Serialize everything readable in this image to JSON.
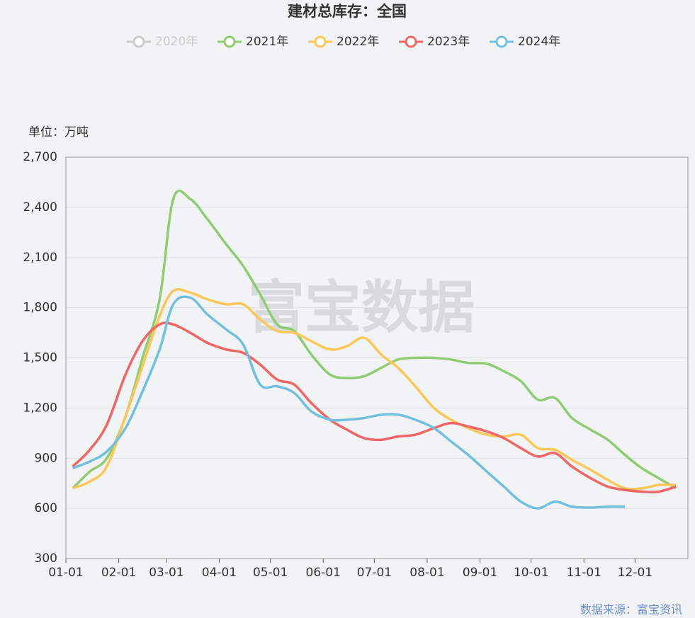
{
  "chart_data": {
    "type": "line",
    "title": "建材总库存：全国",
    "y_unit_label": "单位：万吨",
    "source": "数据来源：富宝资讯",
    "watermark": "富宝数据",
    "x": [
      "01-05",
      "01-15",
      "01-25",
      "02-05",
      "02-15",
      "02-25",
      "03-05",
      "03-15",
      "03-25",
      "04-05",
      "04-15",
      "04-25",
      "05-05",
      "05-15",
      "05-25",
      "06-05",
      "06-15",
      "06-25",
      "07-05",
      "07-15",
      "07-25",
      "08-05",
      "08-15",
      "08-25",
      "09-05",
      "09-15",
      "09-25",
      "10-05",
      "10-15",
      "10-25",
      "11-05",
      "11-15",
      "11-25",
      "12-05",
      "12-15",
      "12-25"
    ],
    "xlim": [
      "01-01",
      "12-31"
    ],
    "xticks": [
      "01-01",
      "02-01",
      "03-01",
      "04-01",
      "05-01",
      "06-01",
      "07-01",
      "08-01",
      "09-01",
      "10-01",
      "11-01",
      "12-01"
    ],
    "ylim": [
      300,
      2700
    ],
    "yticks": [
      300,
      600,
      900,
      {
        "value": 1200,
        "label": "1,200"
      },
      {
        "value": 1500,
        "label": "1,500"
      },
      {
        "value": 1800,
        "label": "1,800"
      },
      {
        "value": 2100,
        "label": "2,100"
      },
      {
        "value": 2400,
        "label": "2,400"
      },
      {
        "value": 2700,
        "label": "2,700"
      }
    ],
    "grid": true,
    "series": [
      {
        "name": "2020年",
        "color": "#cccccc",
        "visible": false,
        "values": [
          null,
          null,
          null,
          null,
          null,
          null,
          null,
          null,
          null,
          null,
          null,
          null,
          null,
          null,
          null,
          null,
          null,
          null,
          null,
          null,
          null,
          null,
          null,
          null,
          null,
          null,
          null,
          null,
          null,
          null,
          null,
          null,
          null,
          null,
          null,
          null
        ]
      },
      {
        "name": "2021年",
        "color": "#91cc75",
        "visible": true,
        "values": [
          720,
          820,
          900,
          1150,
          1500,
          1850,
          2450,
          2450,
          2330,
          2180,
          2050,
          1880,
          1700,
          1660,
          1520,
          1400,
          1380,
          1390,
          1440,
          1490,
          1500,
          1500,
          1490,
          1470,
          1465,
          1420,
          1360,
          1250,
          1260,
          1140,
          1070,
          1010,
          920,
          840,
          780,
          720
        ]
      },
      {
        "name": "2022年",
        "color": "#fac858",
        "visible": true,
        "values": [
          720,
          760,
          850,
          1150,
          1450,
          1750,
          1900,
          1890,
          1850,
          1820,
          1820,
          1730,
          1660,
          1650,
          1600,
          1550,
          1570,
          1620,
          1520,
          1440,
          1330,
          1200,
          1130,
          1080,
          1040,
          1030,
          1040,
          960,
          950,
          890,
          830,
          770,
          720,
          720,
          740,
          740
        ]
      },
      {
        "name": "2023年",
        "color": "#ee6666",
        "visible": true,
        "values": [
          850,
          950,
          1100,
          1400,
          1600,
          1700,
          1700,
          1650,
          1590,
          1550,
          1530,
          1460,
          1370,
          1340,
          1230,
          1130,
          1070,
          1020,
          1010,
          1030,
          1040,
          1080,
          1110,
          1090,
          1060,
          1020,
          960,
          910,
          930,
          850,
          780,
          730,
          710,
          700,
          700,
          730
        ]
      },
      {
        "name": "2024年",
        "color": "#73c0de",
        "visible": true,
        "values": [
          840,
          880,
          940,
          1080,
          1300,
          1550,
          1820,
          1860,
          1760,
          1670,
          1580,
          1340,
          1330,
          1290,
          1180,
          1130,
          1130,
          1140,
          1160,
          1160,
          1130,
          1080,
          1000,
          920,
          820,
          730,
          640,
          600,
          640,
          610,
          605,
          610,
          610,
          null,
          null,
          null
        ]
      }
    ]
  }
}
